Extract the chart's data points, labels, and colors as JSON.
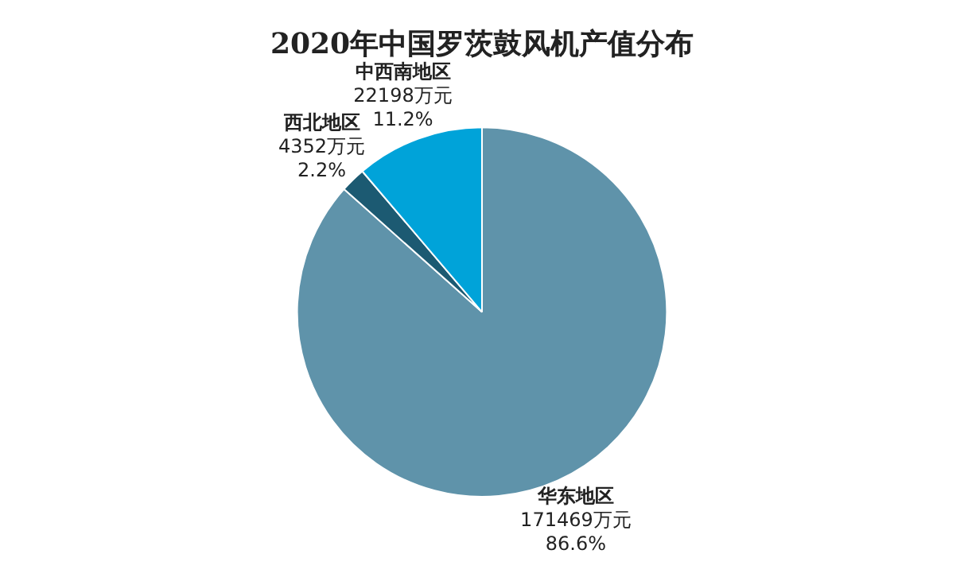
{
  "chart_data": {
    "type": "pie",
    "title": "2020年中国罗茨鼓风机产值分布",
    "categories": [
      "华东地区",
      "西北地区",
      "中西南地区"
    ],
    "values": [
      171469,
      4352,
      22198
    ],
    "colors": [
      "#5f93aa",
      "#1c5a72",
      "#00a3d9"
    ],
    "value_labels": [
      "171469万元\n86.6%",
      "4352万元\n2.2%",
      "22198万元\n11.2%"
    ],
    "legend": false
  }
}
